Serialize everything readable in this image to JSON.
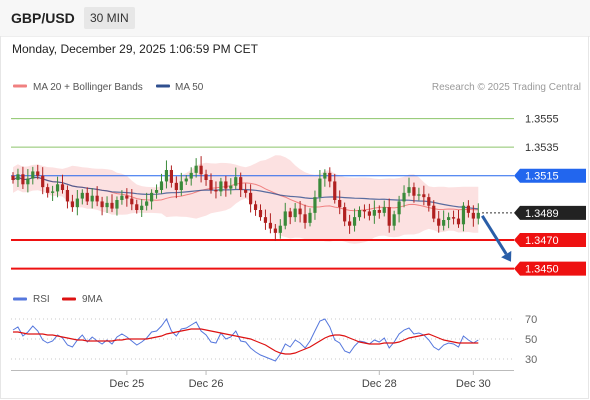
{
  "header": {
    "pair": "GBP/USD",
    "timeframe": "30 MIN"
  },
  "timestamp": "Monday, December 29, 2025 1:06:59 PM CET",
  "legend": {
    "ma20": {
      "label": "MA 20 + Bollinger Bands",
      "color": "#f08080"
    },
    "ma50": {
      "label": "MA 50",
      "color": "#2f4f8f"
    }
  },
  "credit": "Research © 2025 Trading Central",
  "rsi_legend": {
    "rsi": {
      "label": "RSI",
      "color": "#5577dd"
    },
    "ma9": {
      "label": "9MA",
      "color": "#dd1111"
    }
  },
  "colors": {
    "bull": "#3a8a3a",
    "bear": "#b02020",
    "band": "#fbdcdc",
    "pivot": "#2266ee",
    "support": "#ee1111",
    "resistance": "#8cc46a",
    "current": "#222222",
    "arrow": "#2a5ea8"
  },
  "chart_data": {
    "type": "candlestick",
    "ylim": [
      1.3442,
      1.3568
    ],
    "levels": [
      {
        "value": 1.3555,
        "label": "1.3555",
        "kind": "resistance"
      },
      {
        "value": 1.3535,
        "label": "1.3535",
        "kind": "resistance"
      },
      {
        "value": 1.3515,
        "label": "1.3515",
        "kind": "pivot"
      },
      {
        "value": 1.3489,
        "label": "1.3489",
        "kind": "current"
      },
      {
        "value": 1.347,
        "label": "1.3470",
        "kind": "support"
      },
      {
        "value": 1.345,
        "label": "1.3450",
        "kind": "support"
      }
    ],
    "forecast": {
      "from": 1.3489,
      "to": 1.3452
    },
    "x_ticks": [
      {
        "label": "Dec 25",
        "index": 23
      },
      {
        "label": "Dec 26",
        "index": 39
      },
      {
        "label": "Dec 28",
        "index": 74
      },
      {
        "label": "Dec 30",
        "index": 93
      }
    ],
    "closes": [
      1.3512,
      1.3516,
      1.3509,
      1.3513,
      1.3518,
      1.3515,
      1.3507,
      1.3503,
      1.3504,
      1.3509,
      1.3505,
      1.3497,
      1.3493,
      1.3499,
      1.3503,
      1.3497,
      1.3501,
      1.3497,
      1.3493,
      1.3496,
      1.3492,
      1.3498,
      1.3501,
      1.3499,
      1.3495,
      1.3491,
      1.3494,
      1.3497,
      1.3503,
      1.3505,
      1.3511,
      1.3519,
      1.351,
      1.3505,
      1.3511,
      1.3513,
      1.3517,
      1.3522,
      1.3516,
      1.3512,
      1.3505,
      1.3504,
      1.3511,
      1.3506,
      1.3508,
      1.3514,
      1.3505,
      1.3503,
      1.3495,
      1.3491,
      1.3486,
      1.3482,
      1.3478,
      1.3475,
      1.348,
      1.349,
      1.3486,
      1.3492,
      1.3488,
      1.3482,
      1.3489,
      1.35,
      1.3513,
      1.3517,
      1.3511,
      1.3498,
      1.3493,
      1.3483,
      1.348,
      1.3486,
      1.3491,
      1.349,
      1.3487,
      1.3491,
      1.3489,
      1.3493,
      1.348,
      1.3488,
      1.3497,
      1.3503,
      1.3507,
      1.3501,
      1.3502,
      1.35,
      1.3494,
      1.3485,
      1.348,
      1.3484,
      1.3486,
      1.3485,
      1.3481,
      1.3494,
      1.3489,
      1.3485,
      1.3489
    ],
    "rsi": {
      "ylim": [
        25,
        75
      ],
      "ticks": [
        70,
        50,
        30
      ],
      "values": [
        59,
        62,
        53,
        57,
        63,
        58,
        49,
        46,
        48,
        54,
        51,
        44,
        42,
        49,
        54,
        47,
        52,
        48,
        45,
        49,
        45,
        52,
        55,
        52,
        48,
        44,
        47,
        51,
        57,
        58,
        63,
        70,
        58,
        53,
        60,
        61,
        64,
        67,
        58,
        54,
        47,
        46,
        56,
        50,
        52,
        58,
        48,
        47,
        41,
        37,
        34,
        32,
        30,
        28,
        35,
        45,
        42,
        49,
        46,
        41,
        48,
        58,
        68,
        70,
        62,
        49,
        46,
        38,
        36,
        43,
        48,
        47,
        45,
        49,
        47,
        51,
        41,
        47,
        55,
        59,
        61,
        55,
        56,
        54,
        49,
        42,
        39,
        44,
        46,
        45,
        42,
        53,
        49,
        46,
        49
      ],
      "ma9": [
        57,
        57,
        56,
        55,
        55,
        55,
        55,
        54,
        54,
        53,
        52,
        51,
        50,
        49,
        49,
        48,
        48,
        48,
        48,
        48,
        48,
        49,
        49,
        50,
        50,
        50,
        50,
        50,
        51,
        52,
        53,
        55,
        56,
        57,
        58,
        59,
        60,
        60,
        60,
        59,
        58,
        57,
        56,
        55,
        54,
        53,
        52,
        51,
        50,
        48,
        46,
        44,
        41,
        38,
        36,
        35,
        35,
        36,
        38,
        40,
        42,
        45,
        48,
        51,
        53,
        54,
        54,
        53,
        51,
        49,
        47,
        46,
        45,
        45,
        45,
        46,
        46,
        46,
        47,
        49,
        51,
        52,
        53,
        54,
        55,
        53,
        51,
        49,
        48,
        47,
        46,
        46,
        46,
        46,
        46
      ]
    }
  }
}
